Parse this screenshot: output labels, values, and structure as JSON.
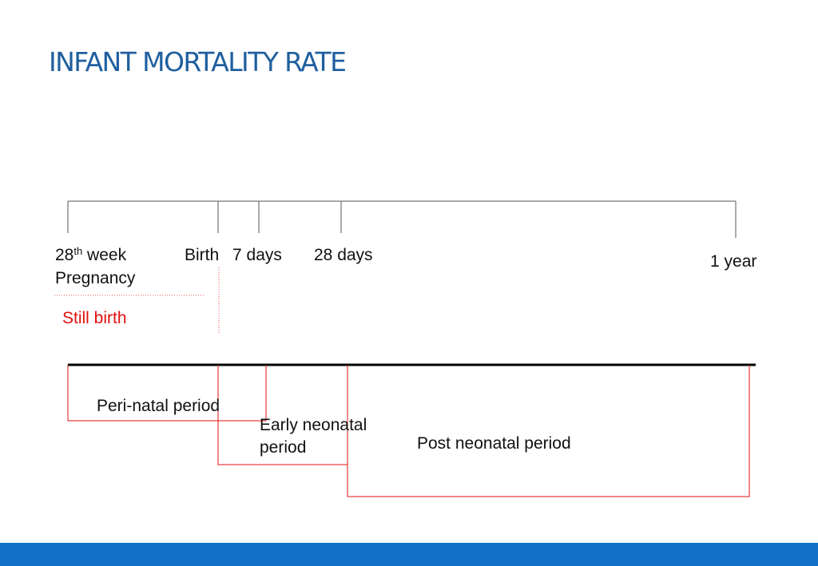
{
  "title": "INFANT MORTALITY RATE",
  "timeline": {
    "week_number": "28",
    "week_suffix": "th",
    "week_word": "week",
    "pregnancy": "Pregnancy",
    "birth": "Birth",
    "seven_days": "7 days",
    "twenty_eight_days": "28 days",
    "one_year": "1 year"
  },
  "still_birth": "Still birth",
  "periods": {
    "perinatal": "Peri-natal period",
    "early_neonatal_line1": "Early neonatal",
    "early_neonatal_line2": "period",
    "post_neonatal": "Post neonatal period"
  },
  "colors": {
    "title": "#1f5f9f",
    "period_box": "#e01010",
    "still_birth": "#e01010",
    "footer_bar": "#1170c8"
  }
}
